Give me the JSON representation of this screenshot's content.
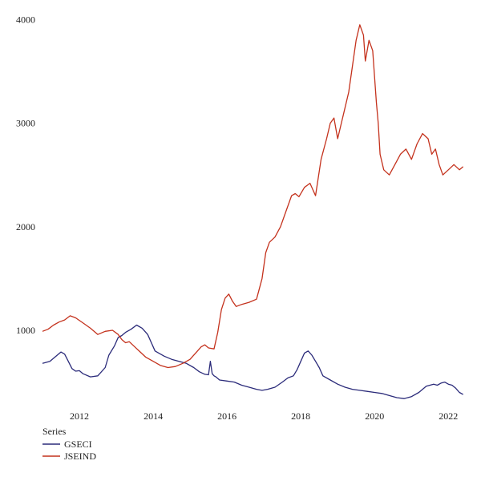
{
  "chart_data": {
    "type": "line",
    "title": "",
    "xlabel": "",
    "ylabel": "",
    "xlim": [
      2011.0,
      2022.45
    ],
    "ylim": [
      280,
      4050
    ],
    "x_ticks": [
      2012,
      2014,
      2016,
      2018,
      2020,
      2022
    ],
    "x_tick_labels": [
      "2012",
      "2014",
      "2016",
      "2018",
      "2020",
      "2022"
    ],
    "y_ticks": [
      1000,
      2000,
      3000,
      4000
    ],
    "y_tick_labels": [
      "1000",
      "2000",
      "3000",
      "4000"
    ],
    "grid": false,
    "legend": {
      "title": "Series",
      "placement": "bottom-left",
      "entries": [
        "GSECI",
        "JSEIND"
      ]
    },
    "series": [
      {
        "name": "GSECI",
        "color": "#2b2b7a",
        "x": [
          2011.0,
          2011.2,
          2011.4,
          2011.5,
          2011.6,
          2011.7,
          2011.8,
          2011.9,
          2012.0,
          2012.1,
          2012.3,
          2012.5,
          2012.7,
          2012.8,
          2012.95,
          2013.05,
          2013.15,
          2013.25,
          2013.4,
          2013.55,
          2013.7,
          2013.85,
          2013.95,
          2014.05,
          2014.15,
          2014.3,
          2014.5,
          2014.7,
          2014.9,
          2015.1,
          2015.25,
          2015.4,
          2015.5,
          2015.55,
          2015.6,
          2015.65,
          2015.7,
          2015.8,
          2016.0,
          2016.2,
          2016.4,
          2016.6,
          2016.8,
          2016.95,
          2017.1,
          2017.3,
          2017.5,
          2017.65,
          2017.8,
          2017.9,
          2018.0,
          2018.1,
          2018.2,
          2018.3,
          2018.4,
          2018.5,
          2018.6,
          2018.8,
          2019.0,
          2019.2,
          2019.4,
          2019.6,
          2019.8,
          2020.0,
          2020.2,
          2020.4,
          2020.6,
          2020.8,
          2021.0,
          2021.2,
          2021.4,
          2021.6,
          2021.7,
          2021.8,
          2021.9,
          2022.0,
          2022.1,
          2022.2,
          2022.3,
          2022.4
        ],
        "values": [
          680,
          700,
          760,
          790,
          770,
          700,
          630,
          605,
          610,
          580,
          550,
          560,
          640,
          760,
          850,
          930,
          950,
          980,
          1010,
          1050,
          1020,
          960,
          880,
          800,
          780,
          750,
          720,
          700,
          680,
          640,
          600,
          575,
          570,
          700,
          580,
          560,
          550,
          520,
          510,
          500,
          470,
          450,
          430,
          420,
          430,
          450,
          500,
          540,
          560,
          620,
          700,
          780,
          800,
          760,
          700,
          640,
          560,
          520,
          480,
          450,
          430,
          420,
          410,
          400,
          390,
          370,
          350,
          340,
          360,
          400,
          460,
          480,
          470,
          490,
          500,
          480,
          470,
          440,
          400,
          380
        ]
      },
      {
        "name": "JSEIND",
        "color": "#c4321d",
        "x": [
          2011.0,
          2011.15,
          2011.3,
          2011.45,
          2011.6,
          2011.75,
          2011.9,
          2012.1,
          2012.3,
          2012.5,
          2012.7,
          2012.9,
          2013.05,
          2013.15,
          2013.25,
          2013.35,
          2013.5,
          2013.65,
          2013.8,
          2014.0,
          2014.2,
          2014.4,
          2014.6,
          2014.8,
          2015.0,
          2015.15,
          2015.3,
          2015.4,
          2015.5,
          2015.65,
          2015.75,
          2015.85,
          2015.95,
          2016.05,
          2016.15,
          2016.25,
          2016.4,
          2016.6,
          2016.8,
          2016.95,
          2017.05,
          2017.15,
          2017.3,
          2017.45,
          2017.6,
          2017.75,
          2017.85,
          2017.95,
          2018.1,
          2018.25,
          2018.4,
          2018.55,
          2018.7,
          2018.8,
          2018.9,
          2019.0,
          2019.1,
          2019.2,
          2019.3,
          2019.4,
          2019.5,
          2019.6,
          2019.7,
          2019.75,
          2019.85,
          2019.95,
          2020.05,
          2020.1,
          2020.15,
          2020.25,
          2020.4,
          2020.55,
          2020.7,
          2020.85,
          2021.0,
          2021.15,
          2021.3,
          2021.45,
          2021.55,
          2021.65,
          2021.75,
          2021.85,
          2022.0,
          2022.15,
          2022.3,
          2022.4
        ],
        "values": [
          990,
          1010,
          1050,
          1080,
          1100,
          1140,
          1120,
          1070,
          1020,
          960,
          990,
          1000,
          960,
          910,
          880,
          890,
          840,
          790,
          740,
          700,
          660,
          640,
          650,
          680,
          720,
          780,
          840,
          860,
          830,
          820,
          980,
          1200,
          1310,
          1350,
          1280,
          1230,
          1250,
          1270,
          1300,
          1500,
          1750,
          1850,
          1900,
          2000,
          2150,
          2300,
          2320,
          2290,
          2380,
          2420,
          2300,
          2650,
          2850,
          3000,
          3050,
          2850,
          3000,
          3150,
          3300,
          3550,
          3800,
          3950,
          3850,
          3600,
          3800,
          3700,
          3200,
          3000,
          2700,
          2550,
          2500,
          2600,
          2700,
          2750,
          2650,
          2800,
          2900,
          2850,
          2700,
          2750,
          2600,
          2500,
          2550,
          2600,
          2550,
          2580
        ]
      }
    ]
  }
}
